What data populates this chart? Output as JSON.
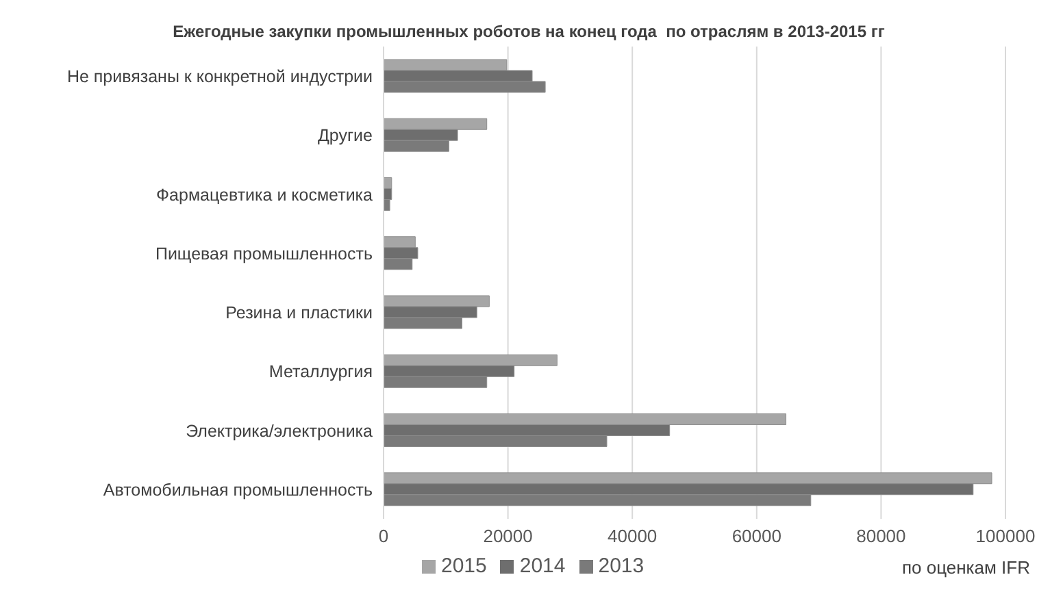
{
  "chart_data": {
    "type": "bar",
    "orientation": "horizontal",
    "title": "Ежегодные закупки промышленных роботов на конец года  по отраслям в 2013-2015 гг",
    "categories": [
      "Не привязаны к конкретной индустрии",
      "Другие",
      "Фармацевтика и косметика",
      "Пищевая промышленность",
      "Резина и пластики",
      "Металлургия",
      "Электрика/электроника",
      "Автомобильная промышленность"
    ],
    "series": [
      {
        "name": "2015",
        "color": "#a6a6a6",
        "values": [
          19800,
          16600,
          1300,
          5100,
          17000,
          27900,
          64700,
          97800
        ]
      },
      {
        "name": "2014",
        "color": "#6e6e6e",
        "values": [
          23900,
          11900,
          1300,
          5500,
          15000,
          21000,
          46000,
          94800
        ]
      },
      {
        "name": "2013",
        "color": "#7a7a7a",
        "values": [
          26000,
          10500,
          1000,
          4600,
          12600,
          16600,
          35900,
          68700
        ]
      }
    ],
    "xlim": [
      0,
      100000
    ],
    "xticks": [
      0,
      20000,
      40000,
      60000,
      80000,
      100000
    ],
    "grid": "x",
    "legend": "bottom",
    "annotations": [
      "по оценкам IFR"
    ]
  }
}
